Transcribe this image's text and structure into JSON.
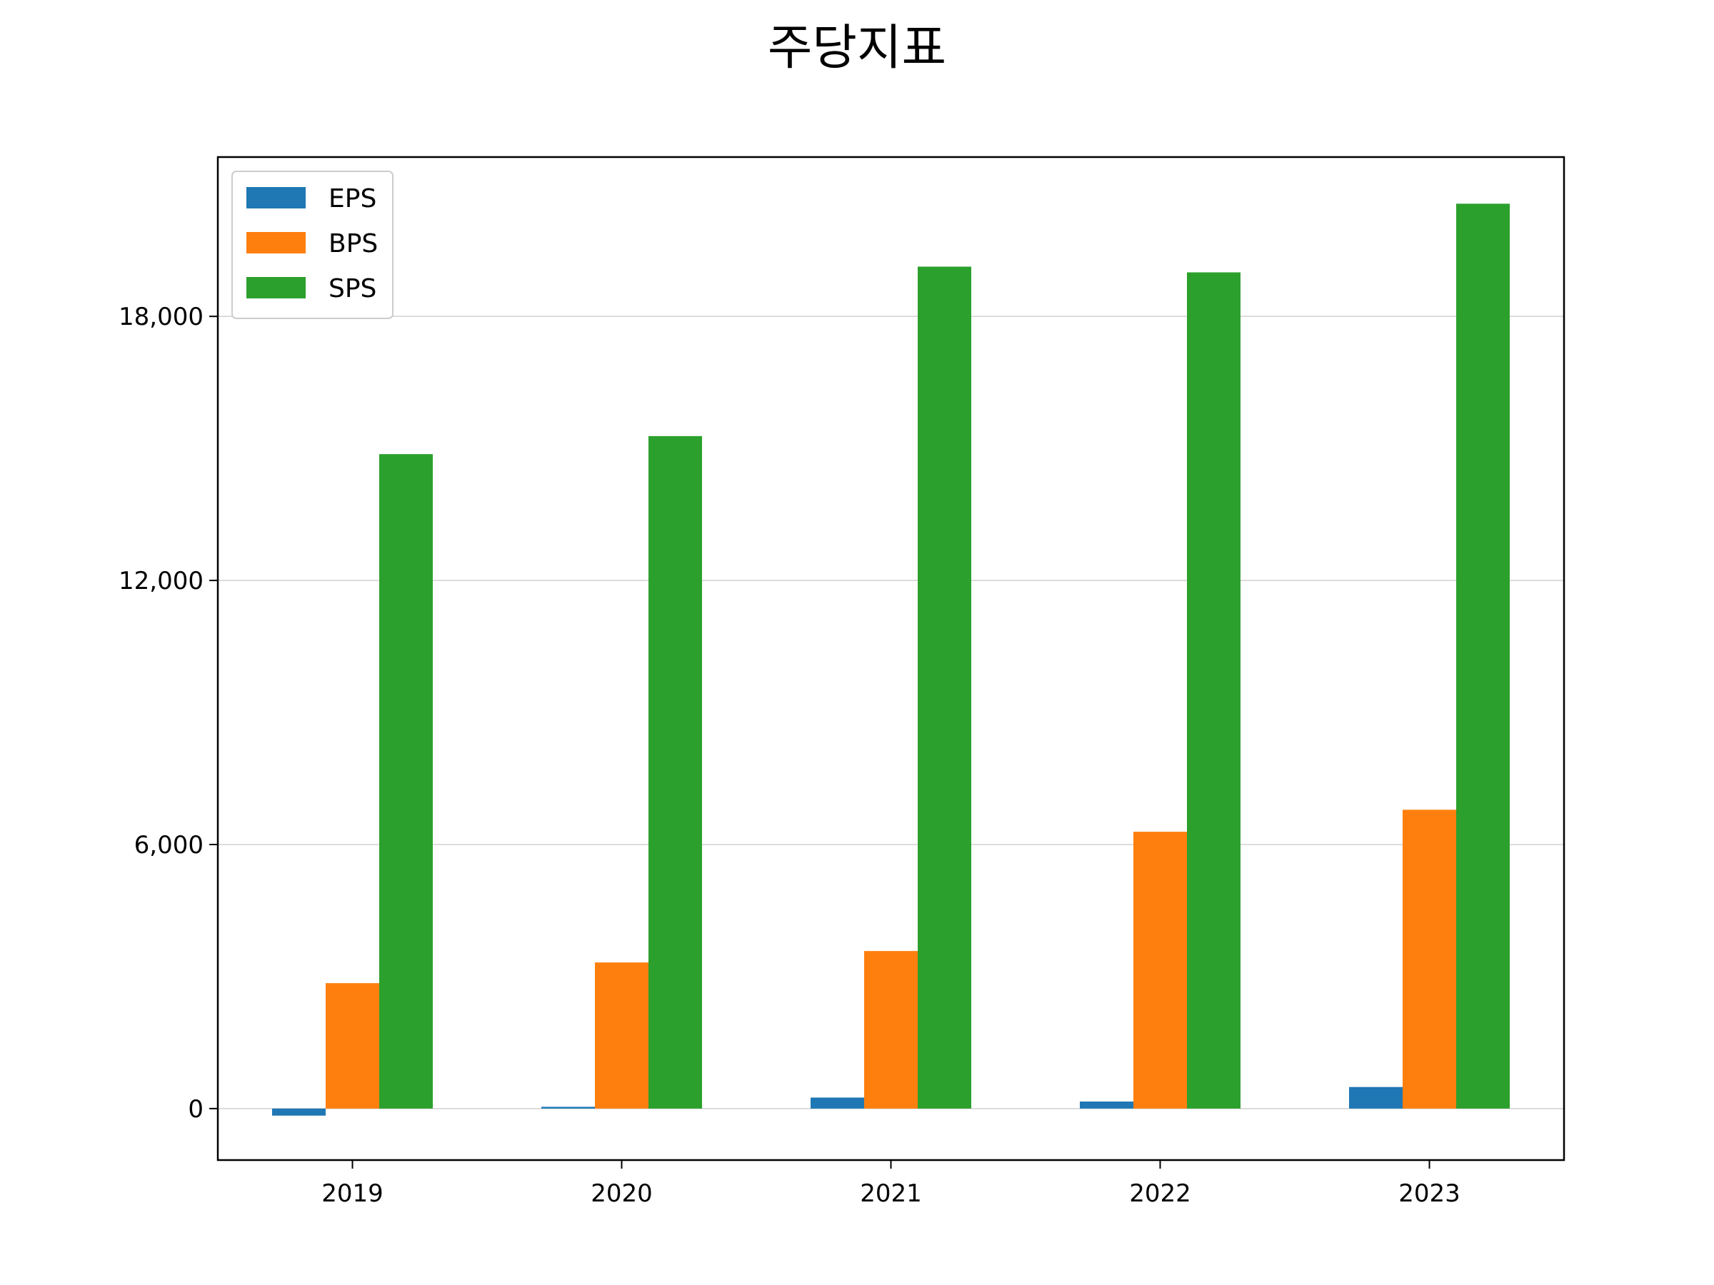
{
  "chart_data": {
    "type": "bar",
    "title": "주당지표",
    "xlabel": "",
    "ylabel": "",
    "categories": [
      "2019",
      "2020",
      "2021",
      "2022",
      "2023"
    ],
    "series": [
      {
        "name": "EPS",
        "color": "#1f77b4",
        "values": [
          -160,
          40,
          250,
          160,
          490
        ]
      },
      {
        "name": "BPS",
        "color": "#ff7f0e",
        "values": [
          2850,
          3320,
          3580,
          6290,
          6790
        ]
      },
      {
        "name": "SPS",
        "color": "#2ca02c",
        "values": [
          14870,
          15280,
          19130,
          19000,
          20560
        ]
      }
    ],
    "ylim": [
      -1170,
      21620
    ],
    "yticks": [
      0,
      6000,
      12000,
      18000
    ],
    "ytick_labels": [
      "0",
      "6,000",
      "12,000",
      "18,000"
    ],
    "grid": "y",
    "legend_position": "top-left"
  }
}
